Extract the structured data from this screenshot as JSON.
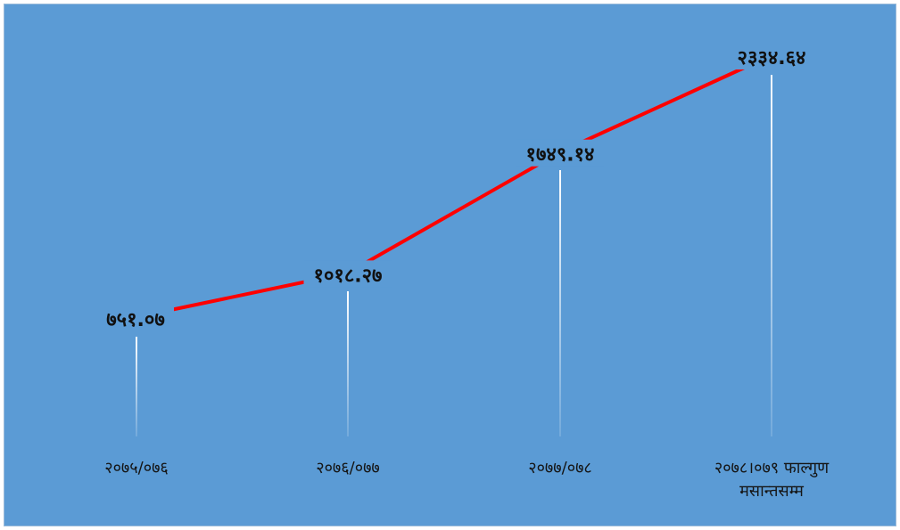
{
  "chart_data": {
    "type": "line",
    "categories": [
      [
        "२०७५/०७६"
      ],
      [
        "२०७६/०७७"
      ],
      [
        "२०७७/०७८"
      ],
      [
        "२०७८।०७९ फाल्गुण",
        "मसान्तसम्म"
      ]
    ],
    "values": [
      751.07,
      1018.27,
      1749.14,
      2334.64
    ],
    "data_labels": [
      "७५१.०७",
      "१०१८.२७",
      "१७४९.१४",
      "२३३४.६४"
    ],
    "line_color": "#ff0000",
    "background_color": "#5b9bd5",
    "drop_line_color": "#ffffff",
    "label_color": "#111111",
    "grid": false,
    "legend": "none"
  }
}
